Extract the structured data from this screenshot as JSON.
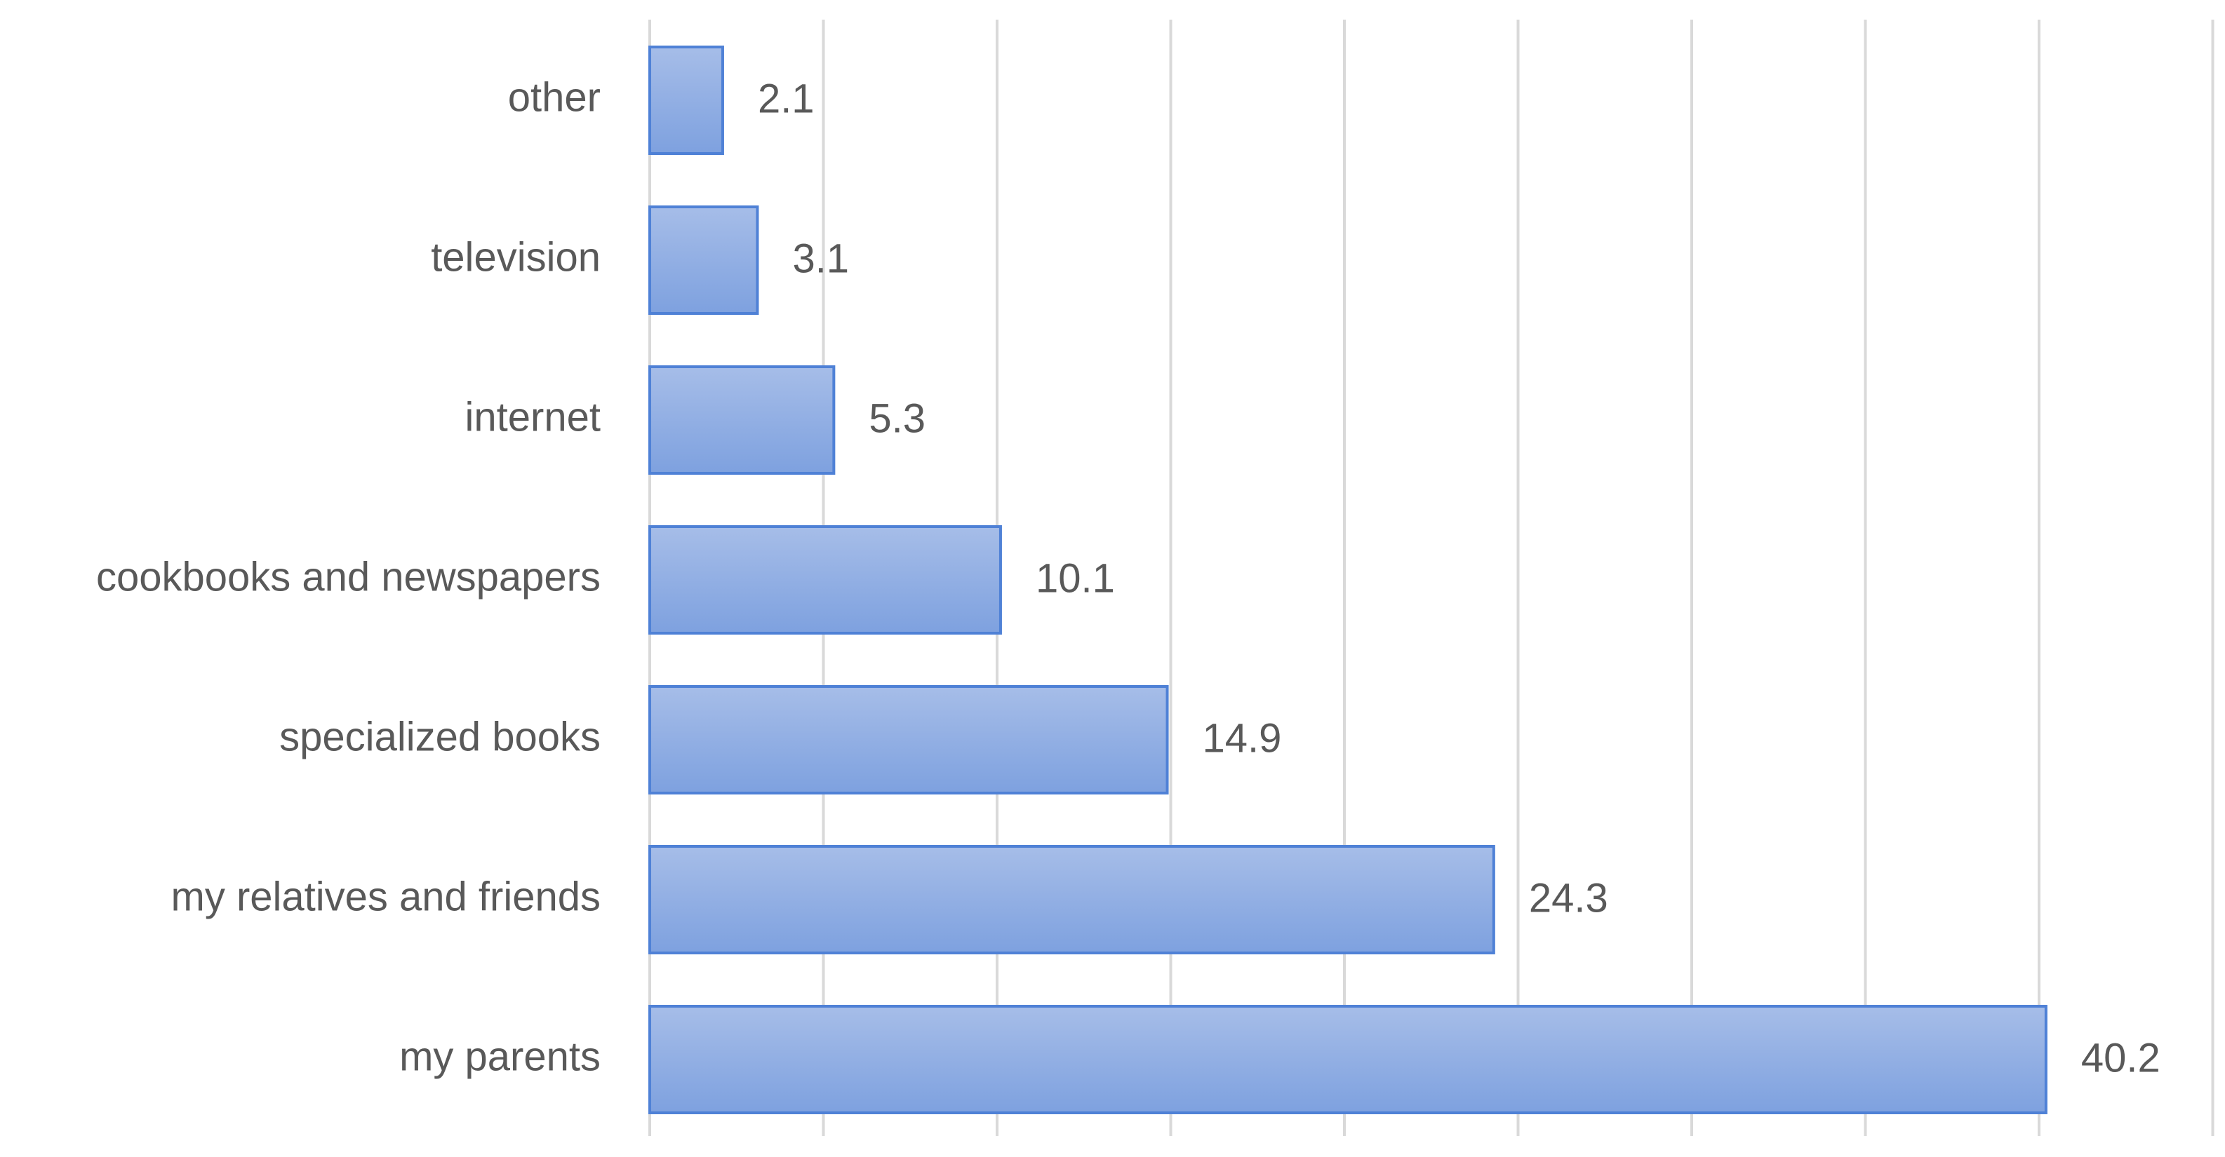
{
  "chart_data": {
    "type": "bar",
    "orientation": "horizontal",
    "categories": [
      "other",
      "television",
      "internet",
      "cookbooks and newspapers",
      "specialized books",
      "my relatives and friends",
      "my parents"
    ],
    "values": [
      2.1,
      3.1,
      5.3,
      10.1,
      14.9,
      24.3,
      40.2
    ],
    "value_labels": [
      "2.1",
      "3.1",
      "5.3",
      "10.1",
      "14.9",
      "24.3",
      "40.2"
    ],
    "xlim": [
      0,
      45
    ],
    "x_grid_step": 5,
    "grid": true,
    "legend": "none",
    "colors": {
      "bar_top": "#a6bde8",
      "bar_bottom": "#7ea1df",
      "bar_border": "#4f81d6",
      "grid": "#d9d9d9",
      "text": "#595959"
    }
  }
}
